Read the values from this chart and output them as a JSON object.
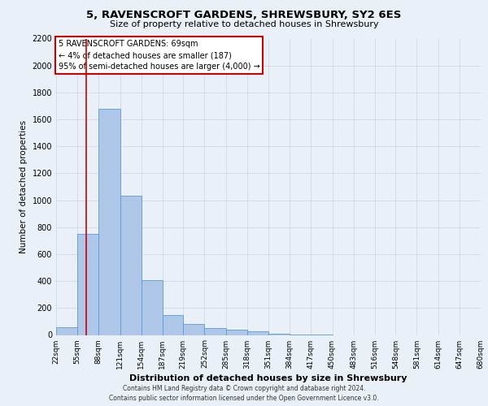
{
  "title": "5, RAVENSCROFT GARDENS, SHREWSBURY, SY2 6ES",
  "subtitle": "Size of property relative to detached houses in Shrewsbury",
  "xlabel": "Distribution of detached houses by size in Shrewsbury",
  "ylabel": "Number of detached properties",
  "footer_line1": "Contains HM Land Registry data © Crown copyright and database right 2024.",
  "footer_line2": "Contains public sector information licensed under the Open Government Licence v3.0.",
  "annotation_line1": "5 RAVENSCROFT GARDENS: 69sqm",
  "annotation_line2": "← 4% of detached houses are smaller (187)",
  "annotation_line3": "95% of semi-detached houses are larger (4,000) →",
  "bar_left_edges": [
    22,
    55,
    88,
    121,
    154,
    187,
    219,
    252,
    285,
    318,
    351,
    384,
    417,
    450,
    483,
    516,
    548,
    581,
    614,
    647
  ],
  "bar_widths": [
    33,
    33,
    33,
    33,
    33,
    32,
    33,
    33,
    33,
    33,
    33,
    33,
    33,
    33,
    33,
    32,
    33,
    33,
    33,
    33
  ],
  "bar_heights": [
    55,
    750,
    1680,
    1035,
    405,
    150,
    80,
    50,
    40,
    25,
    10,
    5,
    5,
    0,
    0,
    0,
    0,
    0,
    0,
    0
  ],
  "bar_color": "#aec6e8",
  "bar_edge_color": "#5b9bd5",
  "red_line_x": 69,
  "red_line_color": "#cc0000",
  "annotation_box_color": "#cc0000",
  "ylim": [
    0,
    2200
  ],
  "yticks": [
    0,
    200,
    400,
    600,
    800,
    1000,
    1200,
    1400,
    1600,
    1800,
    2000,
    2200
  ],
  "x_tick_labels": [
    "22sqm",
    "55sqm",
    "88sqm",
    "121sqm",
    "154sqm",
    "187sqm",
    "219sqm",
    "252sqm",
    "285sqm",
    "318sqm",
    "351sqm",
    "384sqm",
    "417sqm",
    "450sqm",
    "483sqm",
    "516sqm",
    "548sqm",
    "581sqm",
    "614sqm",
    "647sqm",
    "680sqm"
  ],
  "x_tick_positions": [
    22,
    55,
    88,
    121,
    154,
    187,
    219,
    252,
    285,
    318,
    351,
    384,
    417,
    450,
    483,
    516,
    548,
    581,
    614,
    647,
    680
  ],
  "grid_color": "#d0d8e8",
  "background_color": "#eaf0f8",
  "plot_background": "#eaf0f8",
  "title_fontsize": 9.5,
  "subtitle_fontsize": 8,
  "ylabel_fontsize": 7.5,
  "xlabel_fontsize": 8,
  "tick_fontsize": 6.5,
  "footer_fontsize": 5.5,
  "annotation_fontsize": 7
}
